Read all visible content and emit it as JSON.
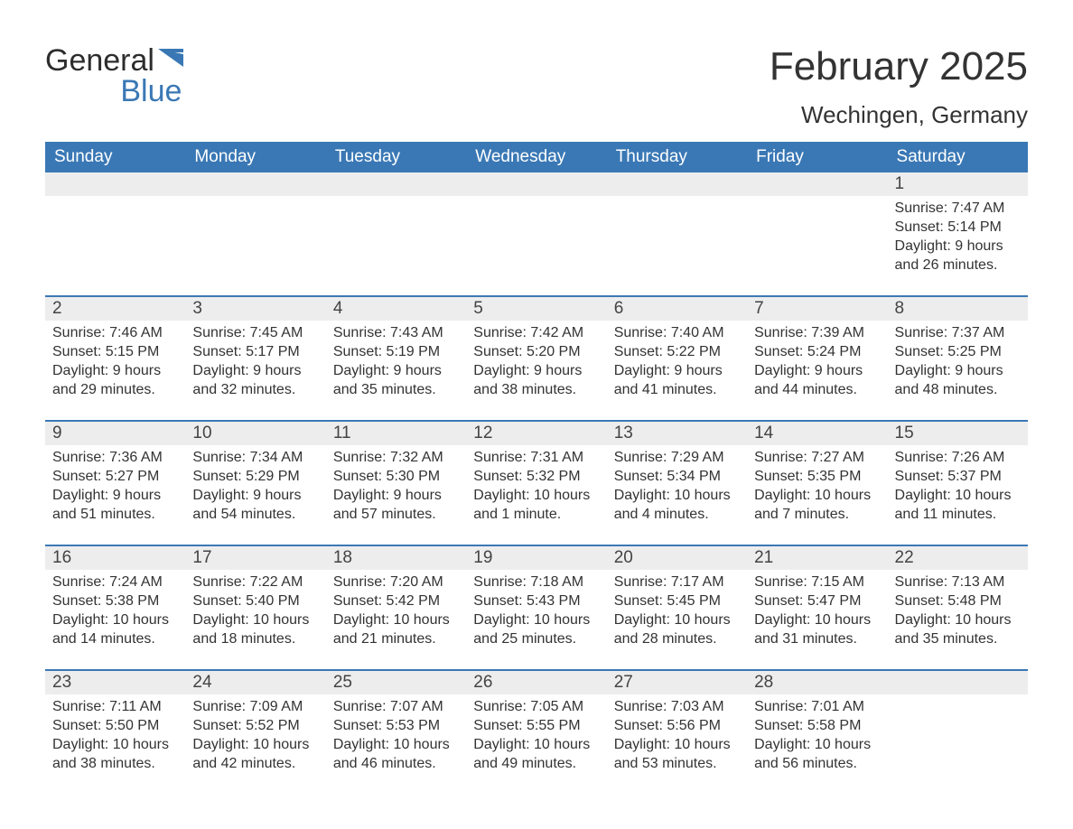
{
  "brand": {
    "word1": "General",
    "word2": "Blue"
  },
  "colors": {
    "accent": "#3a78b5",
    "header_bg": "#3a78b5",
    "header_text": "#ffffff",
    "daynum_bg": "#ededed",
    "text": "#333333",
    "page_bg": "#ffffff"
  },
  "title": "February 2025",
  "location": "Wechingen, Germany",
  "days_of_week": [
    "Sunday",
    "Monday",
    "Tuesday",
    "Wednesday",
    "Thursday",
    "Friday",
    "Saturday"
  ],
  "calendar": {
    "leading_blank": 6,
    "days": [
      {
        "n": 1,
        "sunrise": "7:47 AM",
        "sunset": "5:14 PM",
        "dl_h": 9,
        "dl_m": 26
      },
      {
        "n": 2,
        "sunrise": "7:46 AM",
        "sunset": "5:15 PM",
        "dl_h": 9,
        "dl_m": 29
      },
      {
        "n": 3,
        "sunrise": "7:45 AM",
        "sunset": "5:17 PM",
        "dl_h": 9,
        "dl_m": 32
      },
      {
        "n": 4,
        "sunrise": "7:43 AM",
        "sunset": "5:19 PM",
        "dl_h": 9,
        "dl_m": 35
      },
      {
        "n": 5,
        "sunrise": "7:42 AM",
        "sunset": "5:20 PM",
        "dl_h": 9,
        "dl_m": 38
      },
      {
        "n": 6,
        "sunrise": "7:40 AM",
        "sunset": "5:22 PM",
        "dl_h": 9,
        "dl_m": 41
      },
      {
        "n": 7,
        "sunrise": "7:39 AM",
        "sunset": "5:24 PM",
        "dl_h": 9,
        "dl_m": 44
      },
      {
        "n": 8,
        "sunrise": "7:37 AM",
        "sunset": "5:25 PM",
        "dl_h": 9,
        "dl_m": 48
      },
      {
        "n": 9,
        "sunrise": "7:36 AM",
        "sunset": "5:27 PM",
        "dl_h": 9,
        "dl_m": 51
      },
      {
        "n": 10,
        "sunrise": "7:34 AM",
        "sunset": "5:29 PM",
        "dl_h": 9,
        "dl_m": 54
      },
      {
        "n": 11,
        "sunrise": "7:32 AM",
        "sunset": "5:30 PM",
        "dl_h": 9,
        "dl_m": 57
      },
      {
        "n": 12,
        "sunrise": "7:31 AM",
        "sunset": "5:32 PM",
        "dl_h": 10,
        "dl_m": 1
      },
      {
        "n": 13,
        "sunrise": "7:29 AM",
        "sunset": "5:34 PM",
        "dl_h": 10,
        "dl_m": 4
      },
      {
        "n": 14,
        "sunrise": "7:27 AM",
        "sunset": "5:35 PM",
        "dl_h": 10,
        "dl_m": 7
      },
      {
        "n": 15,
        "sunrise": "7:26 AM",
        "sunset": "5:37 PM",
        "dl_h": 10,
        "dl_m": 11
      },
      {
        "n": 16,
        "sunrise": "7:24 AM",
        "sunset": "5:38 PM",
        "dl_h": 10,
        "dl_m": 14
      },
      {
        "n": 17,
        "sunrise": "7:22 AM",
        "sunset": "5:40 PM",
        "dl_h": 10,
        "dl_m": 18
      },
      {
        "n": 18,
        "sunrise": "7:20 AM",
        "sunset": "5:42 PM",
        "dl_h": 10,
        "dl_m": 21
      },
      {
        "n": 19,
        "sunrise": "7:18 AM",
        "sunset": "5:43 PM",
        "dl_h": 10,
        "dl_m": 25
      },
      {
        "n": 20,
        "sunrise": "7:17 AM",
        "sunset": "5:45 PM",
        "dl_h": 10,
        "dl_m": 28
      },
      {
        "n": 21,
        "sunrise": "7:15 AM",
        "sunset": "5:47 PM",
        "dl_h": 10,
        "dl_m": 31
      },
      {
        "n": 22,
        "sunrise": "7:13 AM",
        "sunset": "5:48 PM",
        "dl_h": 10,
        "dl_m": 35
      },
      {
        "n": 23,
        "sunrise": "7:11 AM",
        "sunset": "5:50 PM",
        "dl_h": 10,
        "dl_m": 38
      },
      {
        "n": 24,
        "sunrise": "7:09 AM",
        "sunset": "5:52 PM",
        "dl_h": 10,
        "dl_m": 42
      },
      {
        "n": 25,
        "sunrise": "7:07 AM",
        "sunset": "5:53 PM",
        "dl_h": 10,
        "dl_m": 46
      },
      {
        "n": 26,
        "sunrise": "7:05 AM",
        "sunset": "5:55 PM",
        "dl_h": 10,
        "dl_m": 49
      },
      {
        "n": 27,
        "sunrise": "7:03 AM",
        "sunset": "5:56 PM",
        "dl_h": 10,
        "dl_m": 53
      },
      {
        "n": 28,
        "sunrise": "7:01 AM",
        "sunset": "5:58 PM",
        "dl_h": 10,
        "dl_m": 56
      }
    ]
  },
  "labels": {
    "sunrise": "Sunrise:",
    "sunset": "Sunset:",
    "daylight": "Daylight:",
    "hours": "hours",
    "and": "and",
    "minutes": "minutes.",
    "minute": "minute."
  },
  "typography": {
    "title_fontsize": 44,
    "location_fontsize": 26,
    "dow_fontsize": 19,
    "daynum_fontsize": 19,
    "body_fontsize": 16
  }
}
